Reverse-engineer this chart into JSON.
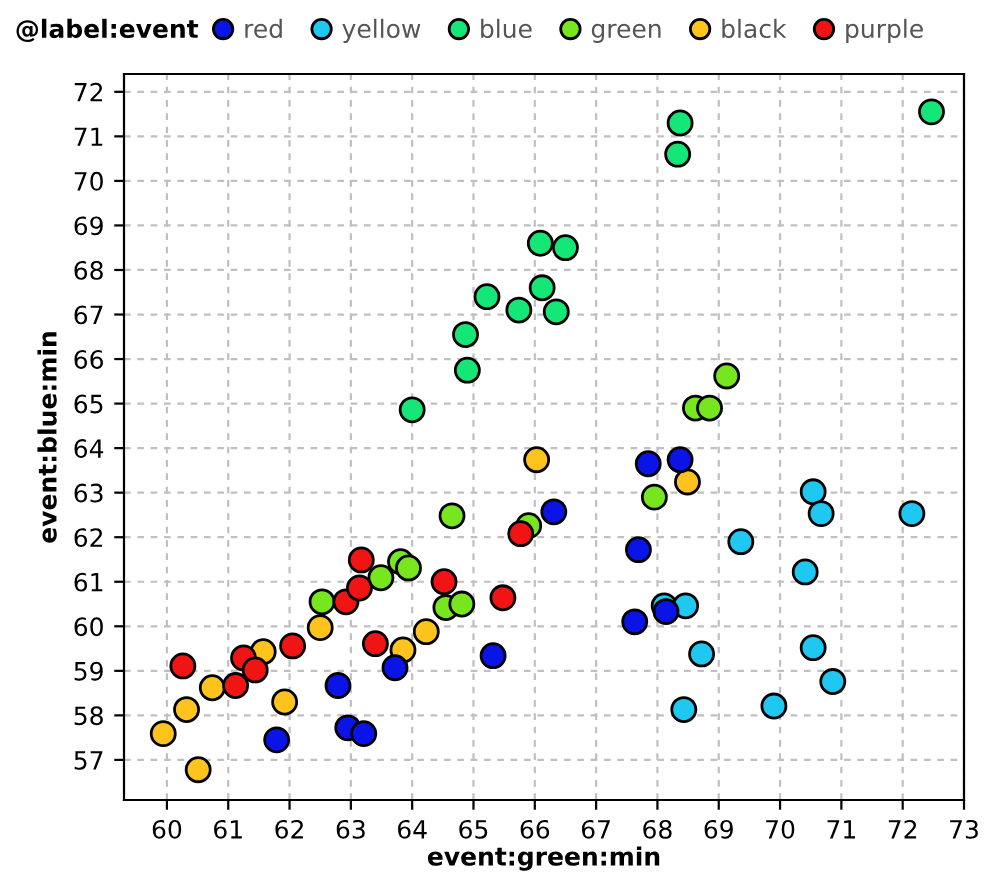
{
  "chart_data": {
    "type": "scatter",
    "xlabel": "event:green:min",
    "ylabel": "event:blue:min",
    "legend_title": "@label:event",
    "legend": "top",
    "grid": true,
    "marker": "circle",
    "xlim": [
      59.3,
      73
    ],
    "ylim": [
      56.1,
      72.4
    ],
    "xticks": [
      60,
      61,
      62,
      63,
      64,
      65,
      66,
      67,
      68,
      69,
      70,
      71,
      72,
      73
    ],
    "yticks": [
      57,
      58,
      59,
      60,
      61,
      62,
      63,
      64,
      65,
      66,
      67,
      68,
      69,
      70,
      71,
      72
    ],
    "series": [
      {
        "name": "red",
        "color": "#0a14e6",
        "x": [
          61.79,
          62.79,
          62.95,
          63.21,
          63.72,
          65.32,
          66.31,
          67.85,
          68.37,
          67.69,
          67.63,
          68.14
        ],
        "values": [
          57.45,
          58.67,
          57.72,
          57.59,
          59.07,
          59.34,
          62.57,
          63.65,
          63.74,
          61.72,
          60.1,
          60.33
        ]
      },
      {
        "name": "yellow",
        "color": "#1ec8f0",
        "x": [
          68.11,
          68.46,
          70.54,
          70.67,
          72.15,
          69.36,
          70.41,
          68.72,
          70.54,
          70.86,
          68.43,
          69.9
        ],
        "values": [
          60.46,
          60.46,
          63.02,
          62.53,
          62.53,
          61.9,
          61.22,
          59.38,
          59.52,
          58.76,
          58.13,
          58.21
        ]
      },
      {
        "name": "blue",
        "color": "#14e678",
        "x": [
          64.0,
          64.87,
          64.9,
          65.22,
          65.74,
          66.09,
          66.5,
          66.12,
          66.35,
          68.37,
          68.33,
          72.47
        ],
        "values": [
          64.86,
          66.55,
          65.75,
          67.4,
          67.1,
          68.6,
          68.5,
          67.6,
          67.06,
          71.3,
          70.6,
          71.55
        ]
      },
      {
        "name": "green",
        "color": "#78e61e",
        "x": [
          69.13,
          68.62,
          68.85,
          67.95,
          65.9,
          64.65,
          62.53,
          63.81,
          63.94,
          63.49,
          64.55,
          64.81
        ],
        "values": [
          65.62,
          64.9,
          64.9,
          62.9,
          62.26,
          62.48,
          60.55,
          61.45,
          61.31,
          61.09,
          60.42,
          60.5
        ]
      },
      {
        "name": "black",
        "color": "#ffc31e",
        "x": [
          59.94,
          60.51,
          60.32,
          60.74,
          61.57,
          61.92,
          62.5,
          63.85,
          64.23,
          66.03,
          68.49
        ],
        "values": [
          57.59,
          56.78,
          58.13,
          58.62,
          59.43,
          58.3,
          59.97,
          59.47,
          59.88,
          63.74,
          63.24
        ]
      },
      {
        "name": "purple",
        "color": "#f01414",
        "x": [
          60.26,
          61.12,
          61.25,
          61.44,
          62.05,
          62.92,
          63.14,
          63.17,
          63.4,
          64.52,
          65.48,
          65.77
        ],
        "values": [
          59.11,
          58.67,
          59.29,
          59.02,
          59.56,
          60.55,
          60.86,
          61.49,
          59.61,
          61.0,
          60.64,
          62.08
        ]
      }
    ]
  }
}
